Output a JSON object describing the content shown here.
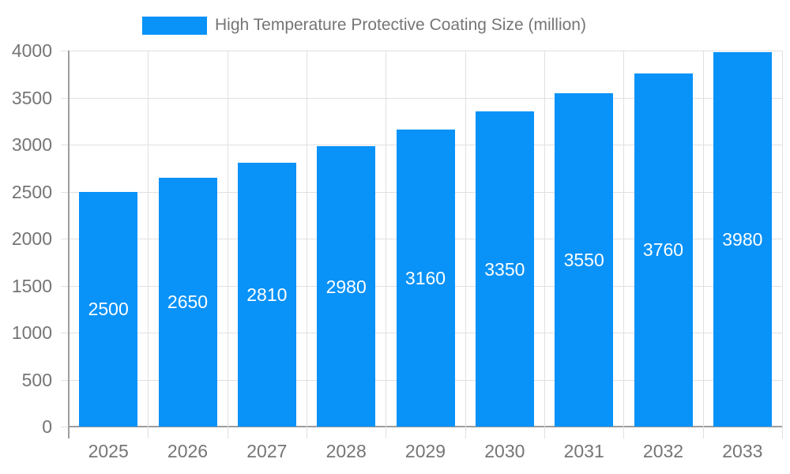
{
  "chart_data": {
    "type": "bar",
    "title": "High Temperature Protective Coating Size (million)",
    "categories": [
      "2025",
      "2026",
      "2027",
      "2028",
      "2029",
      "2030",
      "2031",
      "2032",
      "2033"
    ],
    "values": [
      2500,
      2650,
      2810,
      2980,
      3160,
      3350,
      3550,
      3760,
      3980
    ],
    "xlabel": "",
    "ylabel": "",
    "ylim": [
      0,
      4000
    ],
    "yticks": [
      0,
      500,
      1000,
      1500,
      2000,
      2500,
      3000,
      3500,
      4000
    ],
    "grid": true,
    "legend_position": "top",
    "bar_labels_inside": true
  },
  "colors": {
    "bar": "#0992f8",
    "bar_label": "#ffffff",
    "gridline": "#e0e0e0",
    "axis": "#9e9e9e",
    "tick_text": "#757575",
    "legend_text": "#757575",
    "background": "#ffffff"
  }
}
